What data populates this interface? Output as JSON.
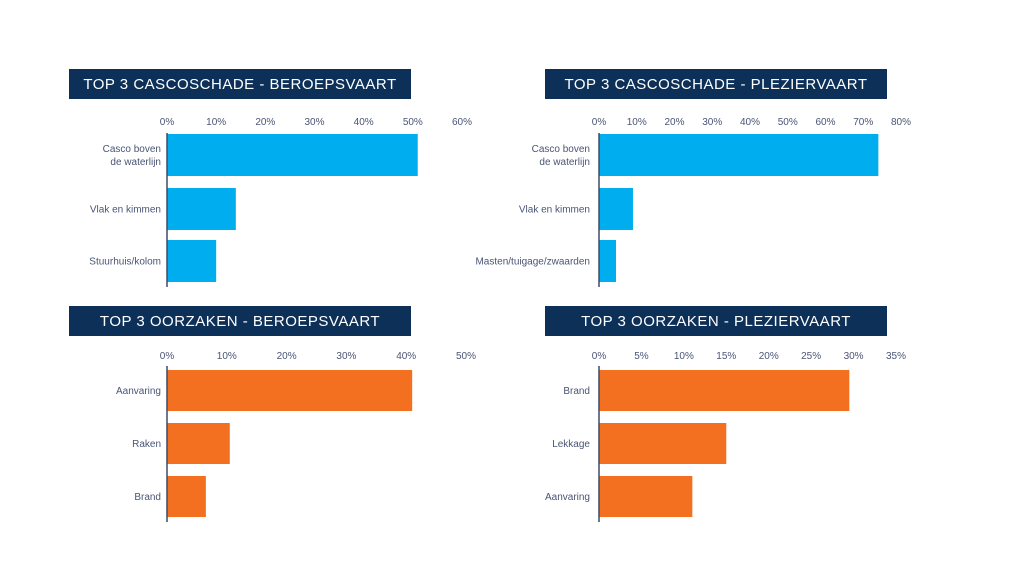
{
  "colors": {
    "title_bg": "#0d3059",
    "axis": "#3d4c6b",
    "blue_bar": "#00aeef",
    "orange_bar": "#f37021"
  },
  "chart_data": [
    {
      "type": "bar",
      "orientation": "horizontal",
      "title": "TOP 3 CASCOSCHADE - BEROEPSVAART",
      "categories": [
        [
          "Casco boven",
          "de waterlijn"
        ],
        [
          "Vlak en kimmen"
        ],
        [
          "Stuurhuis/kolom"
        ]
      ],
      "values": [
        51,
        14,
        10
      ],
      "ticks": [
        "0%",
        "10%",
        "20%",
        "30%",
        "40%",
        "50%",
        "60%"
      ],
      "xlim": [
        0,
        60
      ],
      "color": "#00aeef"
    },
    {
      "type": "bar",
      "orientation": "horizontal",
      "title": "TOP 3 CASCOSCHADE - PLEZIERVAART",
      "categories": [
        [
          "Casco boven",
          "de waterlijn"
        ],
        [
          "Vlak en kimmen"
        ],
        [
          "Masten/tuigage/zwaarden"
        ]
      ],
      "values": [
        74,
        9,
        4.5
      ],
      "ticks": [
        "0%",
        "10%",
        "20%",
        "30%",
        "40%",
        "50%",
        "60%",
        "70%",
        "80%"
      ],
      "xlim": [
        0,
        80
      ],
      "color": "#00aeef"
    },
    {
      "type": "bar",
      "orientation": "horizontal",
      "title": "TOP 3 OORZAKEN - BEROEPSVAART",
      "categories": [
        [
          "Aanvaring"
        ],
        [
          "Raken"
        ],
        [
          "Brand"
        ]
      ],
      "values": [
        41,
        10.5,
        6.5
      ],
      "ticks": [
        "0%",
        "10%",
        "20%",
        "30%",
        "40%",
        "50%"
      ],
      "xlim": [
        0,
        50
      ],
      "color": "#f37021"
    },
    {
      "type": "bar",
      "orientation": "horizontal",
      "title": "TOP 3 OORZAKEN - PLEZIERVAART",
      "categories": [
        [
          "Brand"
        ],
        [
          "Lekkage"
        ],
        [
          "Aanvaring"
        ]
      ],
      "values": [
        29.5,
        15,
        11
      ],
      "ticks": [
        "0%",
        "5%",
        "10%",
        "15%",
        "20%",
        "25%",
        "30%",
        "35%"
      ],
      "xlim": [
        0,
        35
      ],
      "color": "#f37021"
    }
  ]
}
